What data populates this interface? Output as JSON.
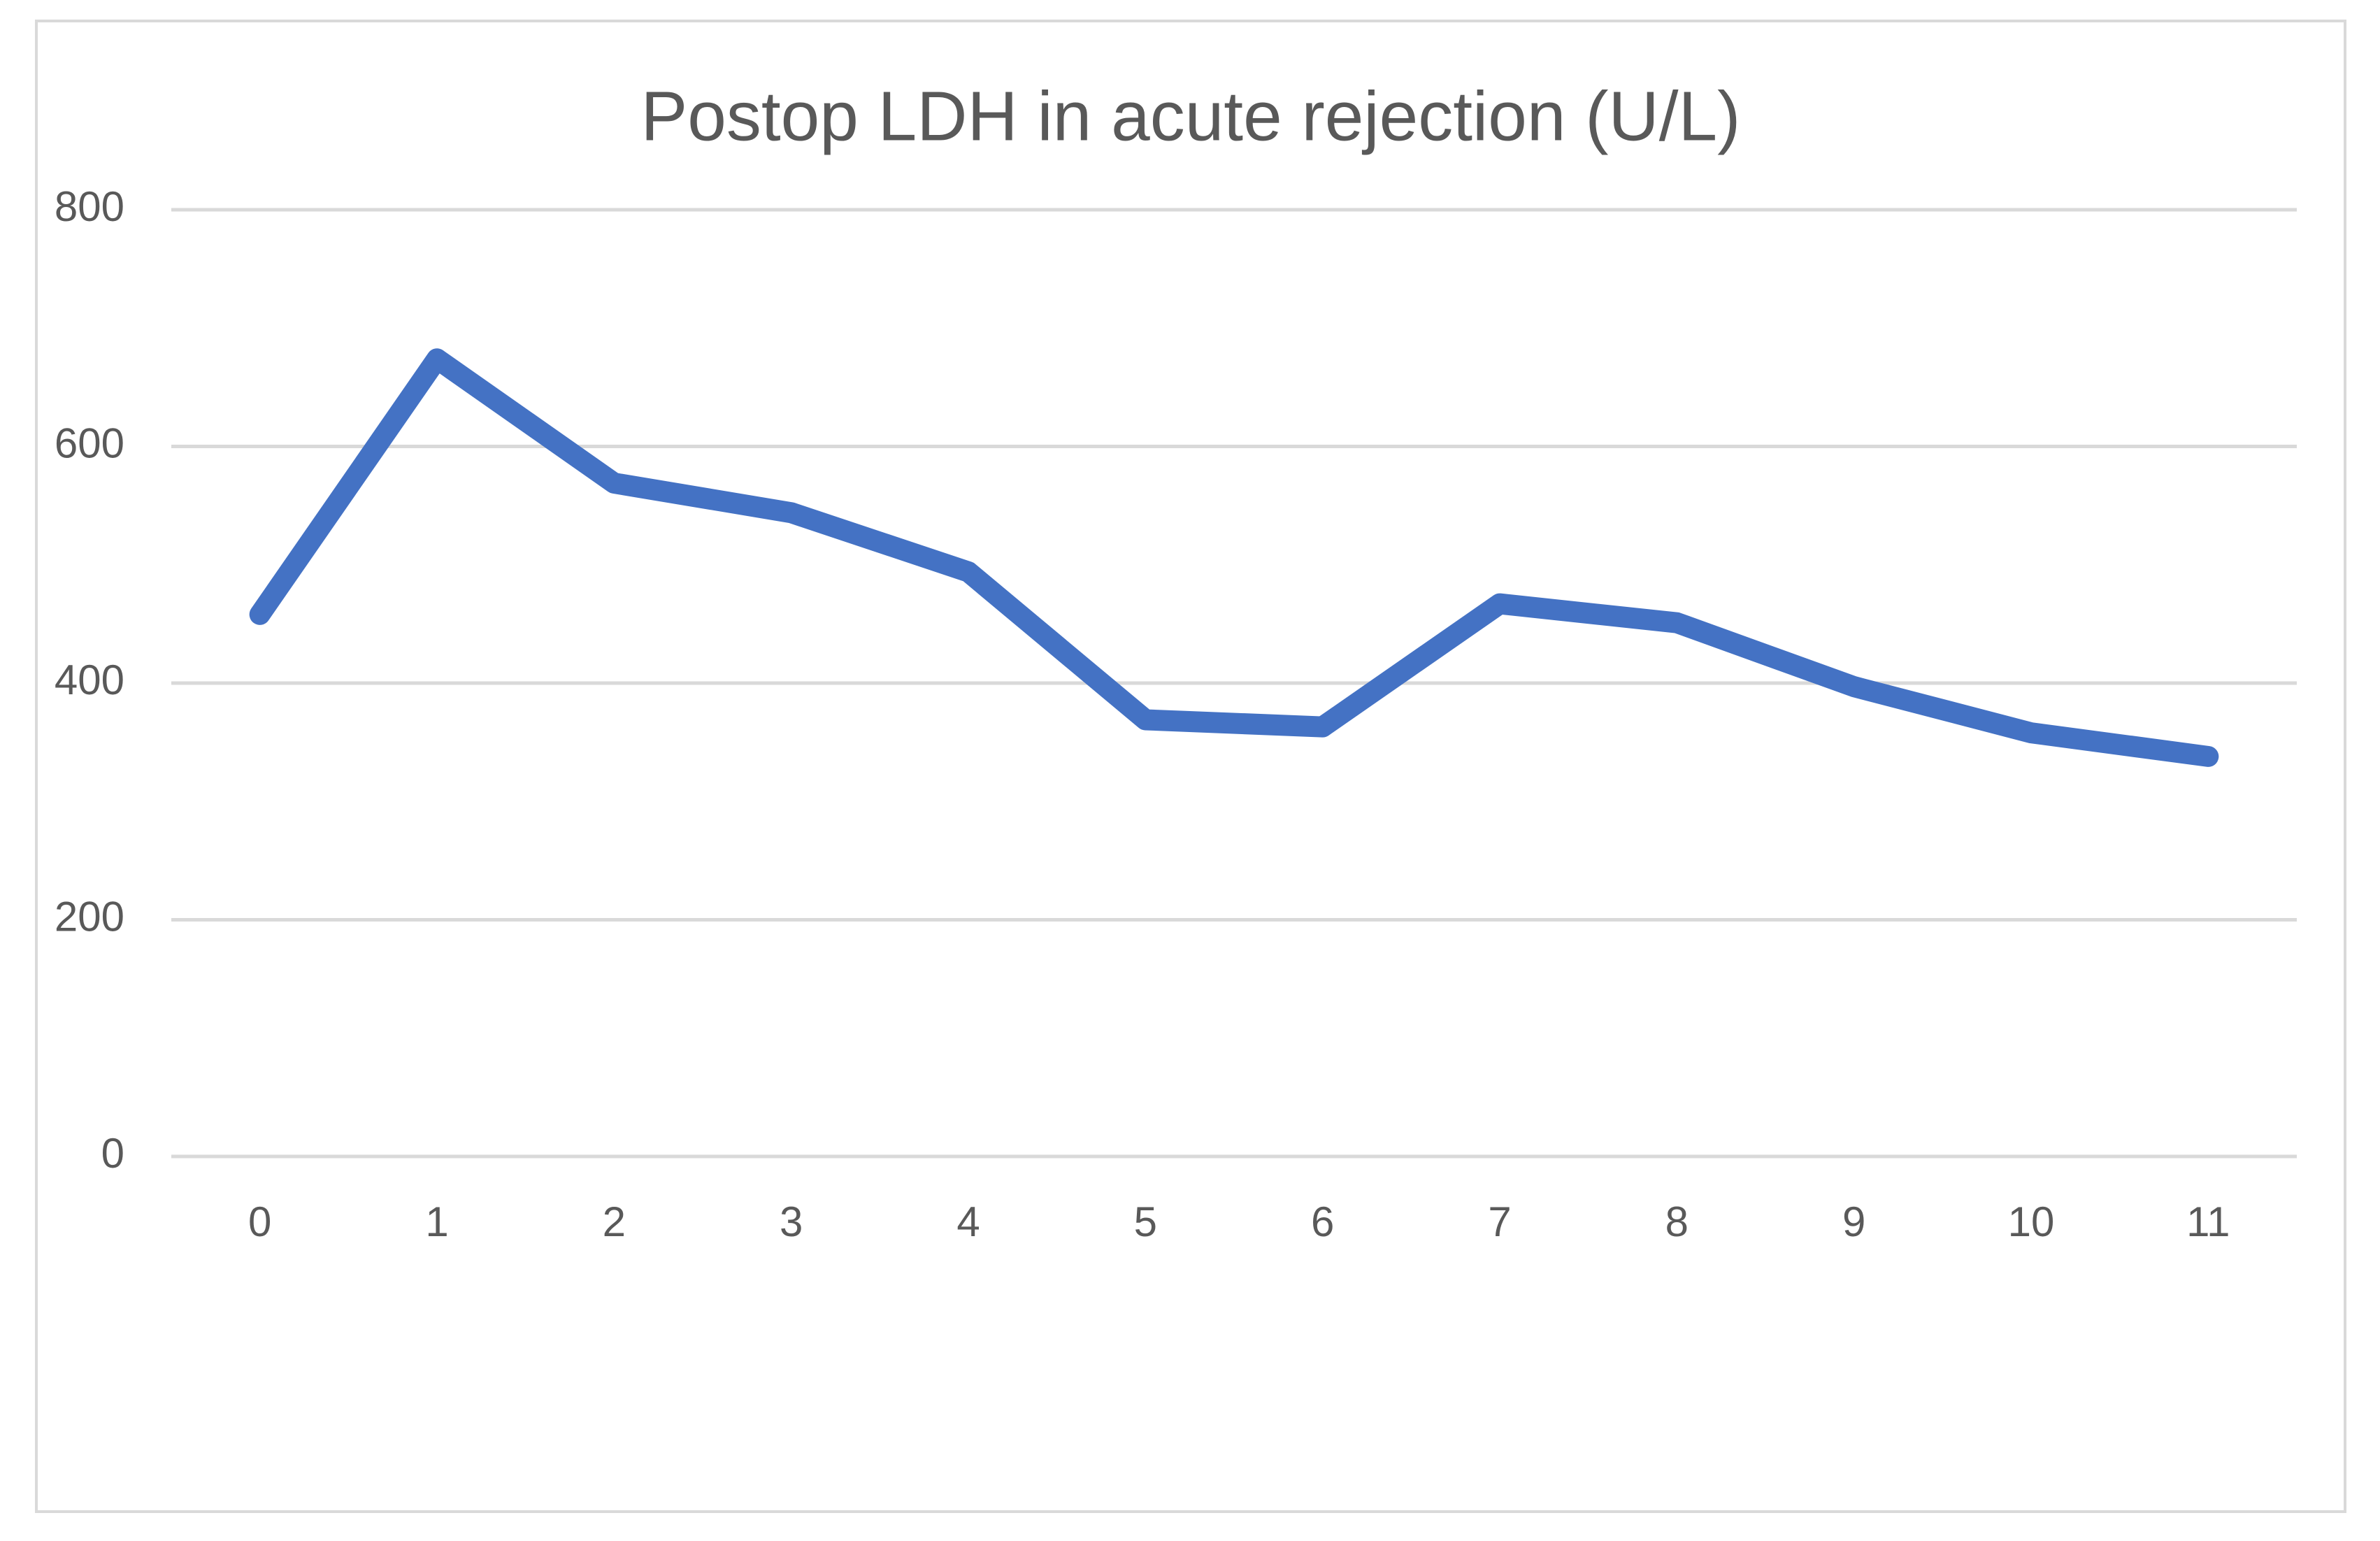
{
  "chart_data": {
    "type": "line",
    "title": "Postop LDH in acute rejection (U/L)",
    "categories": [
      "0",
      "1",
      "2",
      "3",
      "4",
      "5",
      "6",
      "7",
      "8",
      "9",
      "10",
      "11"
    ],
    "values": [
      458,
      674,
      569,
      544,
      494,
      369,
      363,
      467,
      451,
      397,
      358,
      338
    ],
    "color": "#4472c4",
    "ylim": [
      0,
      800
    ],
    "yticks": [
      0,
      200,
      400,
      600,
      800
    ],
    "grid": true
  }
}
